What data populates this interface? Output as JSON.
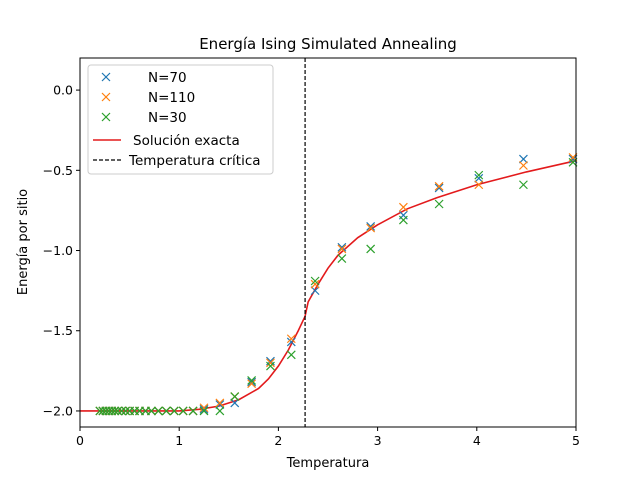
{
  "chart_data": {
    "type": "scatter",
    "title": "Energía Ising Simulated Annealing",
    "xlabel": "Temperatura",
    "ylabel": "Energía por sitio",
    "xlim": [
      0,
      5
    ],
    "ylim": [
      -2.1,
      0.2
    ],
    "xticks": [
      0,
      1,
      2,
      3,
      4,
      5
    ],
    "xtick_labels": [
      "0",
      "1",
      "2",
      "3",
      "4",
      "5"
    ],
    "yticks": [
      0.0,
      -0.5,
      -1.0,
      -1.5,
      -2.0
    ],
    "ytick_labels": [
      "0.0",
      "−0.5",
      "−1.0",
      "−1.5",
      "−2.0"
    ],
    "grid": false,
    "legend_position": "upper-left",
    "series": [
      {
        "name": "N=70",
        "marker": "x",
        "color": "#1f77b4",
        "x": [
          0.2,
          0.23,
          0.26,
          0.29,
          0.32,
          0.35,
          0.38,
          0.42,
          0.46,
          0.5,
          0.55,
          0.6,
          0.66,
          0.72,
          0.79,
          0.87,
          0.95,
          1.04,
          1.14,
          1.25,
          1.41,
          1.56,
          1.73,
          1.92,
          2.13,
          2.37,
          2.64,
          2.93,
          3.26,
          3.62,
          4.02,
          4.47,
          4.97
        ],
        "y": [
          -2.0,
          -2.0,
          -2.0,
          -2.0,
          -2.0,
          -2.0,
          -2.0,
          -2.0,
          -2.0,
          -2.0,
          -2.0,
          -2.0,
          -2.0,
          -2.0,
          -2.0,
          -2.0,
          -2.0,
          -2.0,
          -2.0,
          -1.99,
          -1.96,
          -1.95,
          -1.82,
          -1.69,
          -1.57,
          -1.25,
          -0.98,
          -0.85,
          -0.78,
          -0.61,
          -0.55,
          -0.43,
          -0.43
        ]
      },
      {
        "name": "N=110",
        "marker": "x",
        "color": "#ff7f0e",
        "x": [
          0.2,
          0.23,
          0.26,
          0.29,
          0.32,
          0.35,
          0.38,
          0.42,
          0.46,
          0.5,
          0.55,
          0.6,
          0.66,
          0.72,
          0.79,
          0.87,
          0.95,
          1.04,
          1.14,
          1.25,
          1.41,
          1.56,
          1.73,
          1.92,
          2.13,
          2.37,
          2.64,
          2.93,
          3.26,
          3.62,
          4.02,
          4.47,
          4.97
        ],
        "y": [
          -2.0,
          -2.0,
          -2.0,
          -2.0,
          -2.0,
          -2.0,
          -2.0,
          -2.0,
          -2.0,
          -2.0,
          -2.0,
          -2.0,
          -2.0,
          -2.0,
          -2.0,
          -2.0,
          -2.0,
          -2.0,
          -2.0,
          -1.98,
          -1.95,
          -1.91,
          -1.83,
          -1.7,
          -1.55,
          -1.21,
          -0.99,
          -0.86,
          -0.73,
          -0.6,
          -0.59,
          -0.47,
          -0.42
        ]
      },
      {
        "name": "N=30",
        "marker": "x",
        "color": "#2ca02c",
        "x": [
          0.2,
          0.23,
          0.26,
          0.29,
          0.32,
          0.35,
          0.38,
          0.42,
          0.46,
          0.5,
          0.55,
          0.6,
          0.66,
          0.72,
          0.79,
          0.87,
          0.95,
          1.04,
          1.14,
          1.25,
          1.41,
          1.56,
          1.73,
          1.92,
          2.13,
          2.37,
          2.64,
          2.93,
          3.26,
          3.62,
          4.02,
          4.47,
          4.97
        ],
        "y": [
          -2.0,
          -2.0,
          -2.0,
          -2.0,
          -2.0,
          -2.0,
          -2.0,
          -2.0,
          -2.0,
          -2.0,
          -2.0,
          -2.0,
          -2.0,
          -2.0,
          -2.0,
          -2.0,
          -2.0,
          -2.0,
          -2.0,
          -2.0,
          -2.0,
          -1.91,
          -1.81,
          -1.72,
          -1.65,
          -1.19,
          -1.05,
          -0.99,
          -0.81,
          -0.71,
          -0.53,
          -0.59,
          -0.45
        ]
      },
      {
        "name": "Solución exacta",
        "type": "line",
        "color": "#e31a1c",
        "x": [
          0.0,
          0.5,
          1.0,
          1.2,
          1.4,
          1.6,
          1.8,
          1.9,
          2.0,
          2.1,
          2.2,
          2.269,
          2.3,
          2.4,
          2.5,
          2.6,
          2.8,
          3.0,
          3.3,
          3.6,
          4.0,
          4.5,
          5.0
        ],
        "y": [
          -2.0,
          -2.0,
          -2.0,
          -1.99,
          -1.97,
          -1.93,
          -1.86,
          -1.8,
          -1.72,
          -1.62,
          -1.5,
          -1.41,
          -1.32,
          -1.21,
          -1.11,
          -1.03,
          -0.92,
          -0.84,
          -0.74,
          -0.67,
          -0.59,
          -0.51,
          -0.44
        ]
      },
      {
        "name": "Temperatura crítica",
        "type": "vline",
        "color": "#000000",
        "linestyle": "dashed",
        "x": 2.269
      }
    ]
  }
}
